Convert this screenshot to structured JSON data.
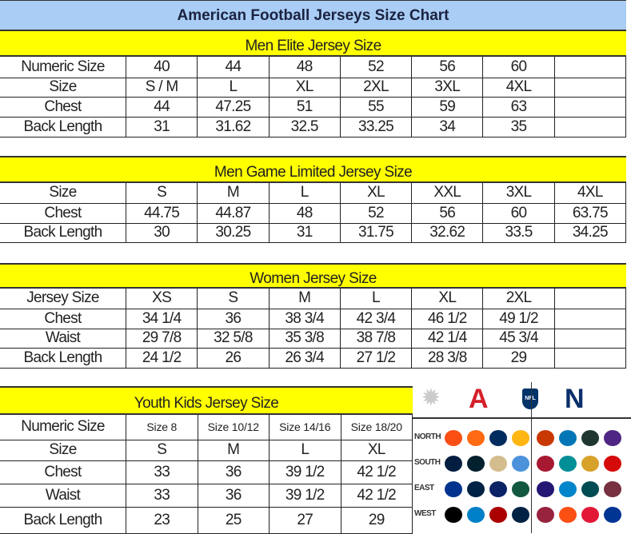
{
  "title": "American Football Jerseys Size Chart",
  "colors": {
    "title_band": "#a9cdf4",
    "section_band": "#ffff00",
    "afc": "#d5202a",
    "nfc": "#0b2f6b"
  },
  "sections": [
    {
      "heading": "Men Elite Jersey Size",
      "cols": 8,
      "rows": [
        [
          "Numeric Size",
          "40",
          "44",
          "48",
          "52",
          "56",
          "60",
          ""
        ],
        [
          "Size",
          "S / M",
          "L",
          "XL",
          "2XL",
          "3XL",
          "4XL",
          ""
        ],
        [
          "Chest",
          "44",
          "47.25",
          "51",
          "55",
          "59",
          "63",
          ""
        ],
        [
          "Back Length",
          "31",
          "31.62",
          "32.5",
          "33.25",
          "34",
          "35",
          ""
        ]
      ]
    },
    {
      "heading": "Men Game Limited Jersey Size",
      "cols": 8,
      "rows": [
        [
          "Size",
          "S",
          "M",
          "L",
          "XL",
          "XXL",
          "3XL",
          "4XL"
        ],
        [
          "Chest",
          "44.75",
          "44.87",
          "48",
          "52",
          "56",
          "60",
          "63.75"
        ],
        [
          "Back Length",
          "30",
          "30.25",
          "31",
          "31.75",
          "32.62",
          "33.5",
          "34.25"
        ]
      ]
    },
    {
      "heading": "Women Jersey Size",
      "cols": 8,
      "rows": [
        [
          "Jersey Size",
          "XS",
          "S",
          "M",
          "L",
          "XL",
          "2XL",
          ""
        ],
        [
          "Chest",
          "34 1/4",
          "36",
          "38 3/4",
          "42 3/4",
          "46 1/2",
          "49 1/2",
          ""
        ],
        [
          "Waist",
          "29 7/8",
          "32 5/8",
          "35 3/8",
          "38 7/8",
          "42 1/4",
          "45 3/4",
          ""
        ],
        [
          "Back Length",
          "24 1/2",
          "26",
          "26 3/4",
          "27 1/2",
          "28 3/8",
          "29",
          ""
        ]
      ]
    },
    {
      "heading": "Youth Kids Jersey Size",
      "cols": 5,
      "rows": [
        [
          "Numeric Size",
          "Size 8",
          "Size 10/12",
          "Size 14/16",
          "Size 18/20"
        ],
        [
          "Size",
          "S",
          "M",
          "L",
          "XL"
        ],
        [
          "Chest",
          "33",
          "36",
          "39 1/2",
          "42 1/2"
        ],
        [
          "Waist",
          "33",
          "36",
          "39 1/2",
          "42 1/2"
        ],
        [
          "Back Length",
          "23",
          "25",
          "27",
          "29"
        ]
      ]
    }
  ],
  "logos": {
    "afc_letter": "A",
    "nfc_letter": "N",
    "nfl_shield": "NFL",
    "divisions": [
      "NORTH",
      "SOUTH",
      "EAST",
      "WEST"
    ],
    "afc_team_colors": [
      [
        "#fb4f14",
        "#ff6a13",
        "#002c5f",
        "#ffb612"
      ],
      [
        "#041e42",
        "#03202f",
        "#d3bc8d",
        "#4b92db"
      ],
      [
        "#00338d",
        "#002244",
        "#0b2265",
        "#125740"
      ],
      [
        "#000000",
        "#0080c6",
        "#aa0000",
        "#002244"
      ]
    ],
    "nfc_team_colors": [
      [
        "#c83803",
        "#0076b6",
        "#203731",
        "#4f2683"
      ],
      [
        "#a71930",
        "#008e97",
        "#d7a22a",
        "#d50a0a"
      ],
      [
        "#241773",
        "#0085ca",
        "#004c54",
        "#773141"
      ],
      [
        "#97233f",
        "#fb4f14",
        "#e31837",
        "#003594"
      ]
    ]
  }
}
